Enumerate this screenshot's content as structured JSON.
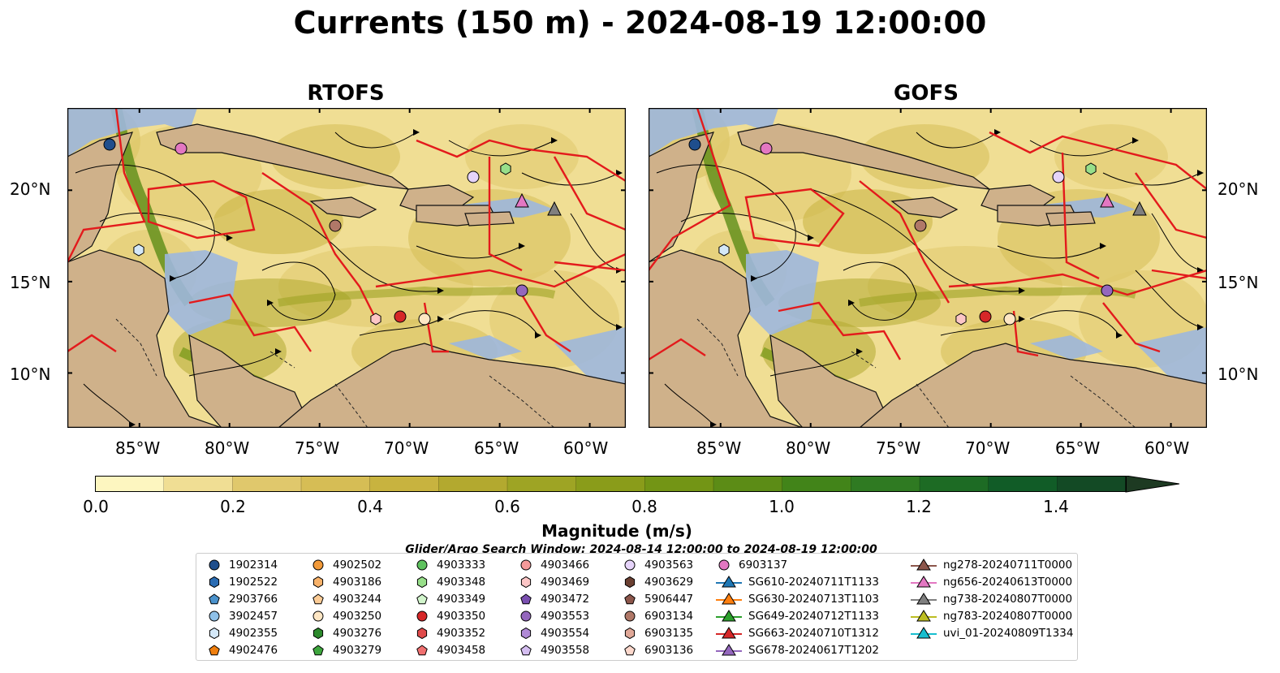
{
  "title": "Currents (150 m) - 2024-08-19 12:00:00",
  "panels": [
    {
      "title": "RTOFS",
      "model": "rtofs"
    },
    {
      "title": "GOFS",
      "model": "gofs"
    }
  ],
  "lat_labels": [
    "20°N",
    "15°N",
    "10°N"
  ],
  "lon_labels": [
    "85°W",
    "80°W",
    "75°W",
    "70°W",
    "65°W",
    "60°W"
  ],
  "map_extent": {
    "lon_min": -89,
    "lon_max": -58,
    "lat_min": 7,
    "lat_max": 24.5
  },
  "colorbar": {
    "label": "Magnitude (m/s)",
    "ticks": [
      "0.0",
      "0.2",
      "0.4",
      "0.6",
      "0.8",
      "1.0",
      "1.2",
      "1.4"
    ],
    "min": 0.0,
    "max": 1.5,
    "step": 0.1,
    "extend": "max",
    "colors": [
      "#fdf6c0",
      "#f0de94",
      "#e0c86c",
      "#d6bd55",
      "#c8b33f",
      "#b3a92f",
      "#9ea424",
      "#8a9c1a",
      "#739515",
      "#5c8c16",
      "#428419",
      "#2f7a22",
      "#1d6b24",
      "#115c27",
      "#134a25",
      "#1d3a22"
    ]
  },
  "search_window": "Glider/Argo Search Window: 2024-08-14 12:00:00 to 2024-08-19 12:00:00",
  "legend": [
    [
      {
        "label": "1902314",
        "marker": "circle",
        "color": "#1f4e8c"
      },
      {
        "label": "1902522",
        "marker": "hexagon",
        "color": "#2a6cb3"
      },
      {
        "label": "2903766",
        "marker": "pentagon",
        "color": "#4a92cc"
      },
      {
        "label": "3902457",
        "marker": "circle",
        "color": "#8fc1e8"
      },
      {
        "label": "4902355",
        "marker": "hexagon",
        "color": "#d4e8f8"
      },
      {
        "label": "4902476",
        "marker": "pentagon",
        "color": "#f07f0e"
      }
    ],
    [
      {
        "label": "4902502",
        "marker": "circle",
        "color": "#f29a3a"
      },
      {
        "label": "4903186",
        "marker": "hexagon",
        "color": "#f8b26a"
      },
      {
        "label": "4903244",
        "marker": "pentagon",
        "color": "#fccc96"
      },
      {
        "label": "4903250",
        "marker": "circle",
        "color": "#fde6c4"
      },
      {
        "label": "4903276",
        "marker": "hexagon",
        "color": "#2c8a2c"
      },
      {
        "label": "4903279",
        "marker": "pentagon",
        "color": "#3da63d"
      }
    ],
    [
      {
        "label": "4903333",
        "marker": "circle",
        "color": "#5ec25e"
      },
      {
        "label": "4903348",
        "marker": "hexagon",
        "color": "#98df8a"
      },
      {
        "label": "4903349",
        "marker": "pentagon",
        "color": "#d2f5cc"
      },
      {
        "label": "4903350",
        "marker": "circle",
        "color": "#d62728"
      },
      {
        "label": "4903352",
        "marker": "hexagon",
        "color": "#e04b4b"
      },
      {
        "label": "4903458",
        "marker": "pentagon",
        "color": "#f07070"
      }
    ],
    [
      {
        "label": "4903466",
        "marker": "circle",
        "color": "#f59a9a"
      },
      {
        "label": "4903469",
        "marker": "hexagon",
        "color": "#fcc6c6"
      },
      {
        "label": "4903472",
        "marker": "pentagon",
        "color": "#7a4fb0"
      },
      {
        "label": "4903553",
        "marker": "circle",
        "color": "#9467bd"
      },
      {
        "label": "4903554",
        "marker": "hexagon",
        "color": "#b08ad6"
      },
      {
        "label": "4903558",
        "marker": "pentagon",
        "color": "#d4bdf0"
      }
    ],
    [
      {
        "label": "4903563",
        "marker": "circle",
        "color": "#e6d4fa"
      },
      {
        "label": "4903629",
        "marker": "hexagon",
        "color": "#6b4032"
      },
      {
        "label": "5906447",
        "marker": "pentagon",
        "color": "#8c564b"
      },
      {
        "label": "6903134",
        "marker": "circle",
        "color": "#b07868"
      },
      {
        "label": "6903135",
        "marker": "hexagon",
        "color": "#e0a898"
      },
      {
        "label": "6903136",
        "marker": "pentagon",
        "color": "#fcd8cc"
      }
    ],
    [
      {
        "label": "6903137",
        "marker": "circle",
        "color": "#e377c2"
      },
      {
        "label": "SG610-20240711T1133",
        "marker": "triangle-line",
        "color": "#1f77b4"
      },
      {
        "label": "SG630-20240713T1103",
        "marker": "triangle-line",
        "color": "#ff7f0e"
      },
      {
        "label": "SG649-20240712T1133",
        "marker": "triangle-line",
        "color": "#2ca02c"
      },
      {
        "label": "SG663-20240710T1312",
        "marker": "triangle-line",
        "color": "#d62728"
      },
      {
        "label": "SG678-20240617T1202",
        "marker": "triangle-line",
        "color": "#9467bd"
      }
    ],
    [
      {
        "label": "ng278-20240711T0000",
        "marker": "triangle-line",
        "color": "#8c564b"
      },
      {
        "label": "ng656-20240613T0000",
        "marker": "triangle-line",
        "color": "#e377c2"
      },
      {
        "label": "ng738-20240807T0000",
        "marker": "triangle-line",
        "color": "#7f7f7f"
      },
      {
        "label": "ng783-20240807T0000",
        "marker": "triangle-line",
        "color": "#bcbd22"
      },
      {
        "label": "uvi_01-20240809T1334",
        "marker": "triangle-line",
        "color": "#17becf"
      }
    ]
  ],
  "colors": {
    "land": "#cfb18a",
    "shallow": "#9db7dd",
    "front_lines": "#e31a1c",
    "streamlines": "#000000"
  }
}
